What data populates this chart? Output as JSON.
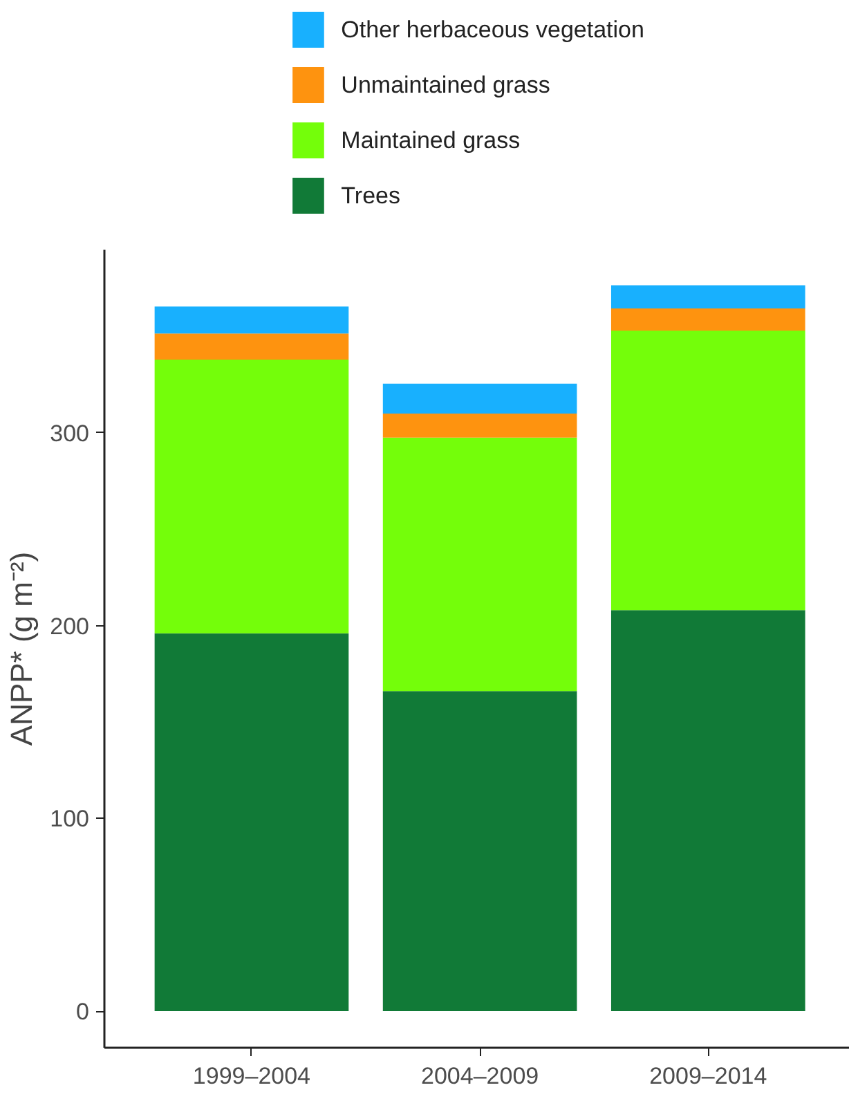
{
  "chart_data": {
    "type": "bar",
    "stacked": true,
    "ylabel": "ANPP* (g m⁻²)",
    "categories": [
      "1999–2004",
      "2004–2009",
      "2009–2014"
    ],
    "series": [
      {
        "name": "Trees",
        "color": "#117a37",
        "values": [
          196,
          166,
          208
        ]
      },
      {
        "name": "Maintained grass",
        "color": "#74fe0a",
        "values": [
          142,
          131.5,
          145
        ]
      },
      {
        "name": "Unmaintained grass",
        "color": "#fe930f",
        "values": [
          13.5,
          12.5,
          11.5
        ]
      },
      {
        "name": "Other herbaceous vegetation",
        "color": "#18b0fe",
        "values": [
          14,
          15.5,
          12
        ]
      }
    ],
    "ylim": [
      -19,
      395
    ],
    "yticks": [
      0,
      100,
      200,
      300
    ],
    "grid": false,
    "legend": "top"
  }
}
